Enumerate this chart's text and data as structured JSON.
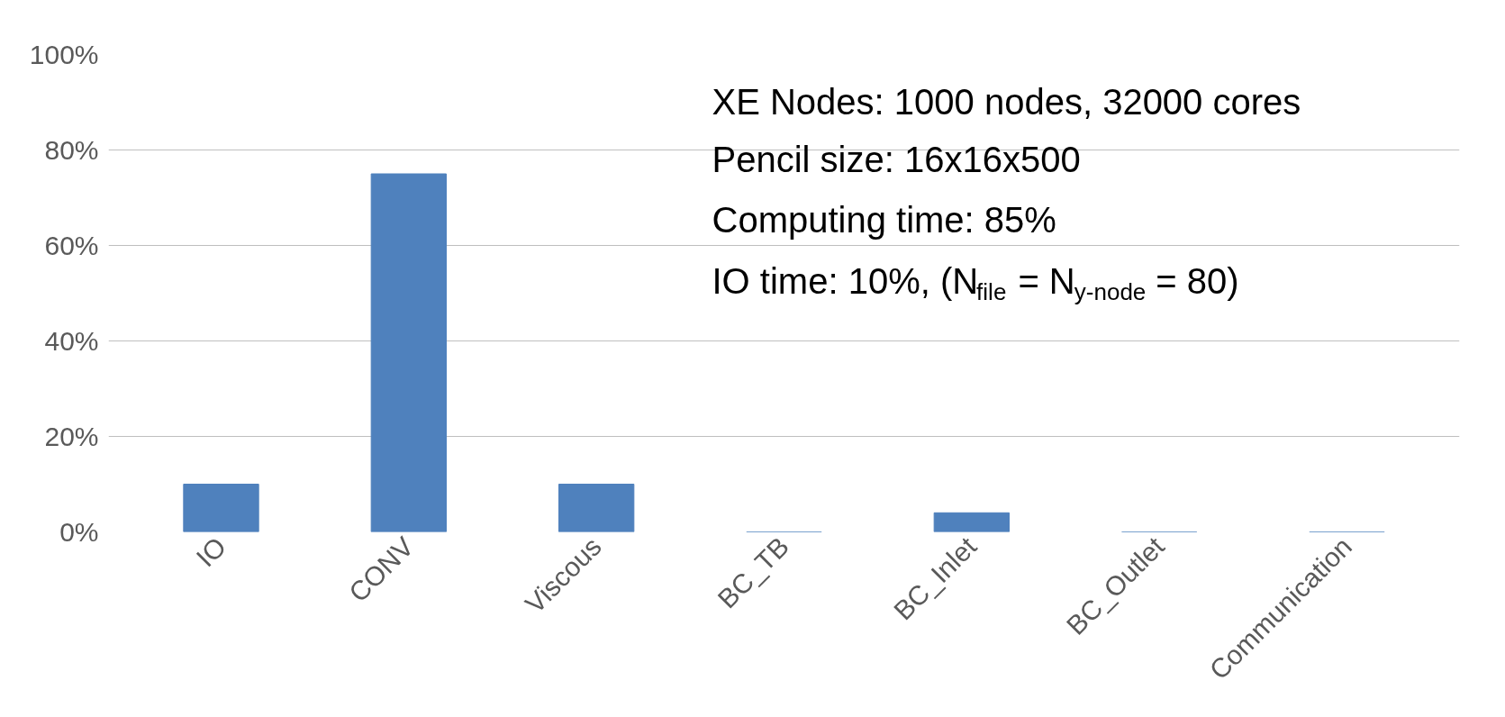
{
  "chart_data": {
    "type": "bar",
    "categories": [
      "IO",
      "CONV",
      "Viscous",
      "BC_TB",
      "BC_Inlet",
      "BC_Outlet",
      "Communication"
    ],
    "values": [
      10,
      75,
      10,
      0,
      4,
      0,
      0
    ],
    "color": "#4f81bd",
    "ylim": [
      0,
      100
    ],
    "yticks": [
      {
        "value": 0,
        "label": "0%"
      },
      {
        "value": 20,
        "label": "20%"
      },
      {
        "value": 40,
        "label": "40%"
      },
      {
        "value": 60,
        "label": "60%"
      },
      {
        "value": 80,
        "label": "80%"
      },
      {
        "value": 100,
        "label": "100%"
      }
    ],
    "grid": "y",
    "annotations": [
      "XE Nodes: 1000 nodes, 32000 cores",
      "Pencil size: 16x16x500",
      "Computing time: 85%",
      "IO time: 10%, (N$_{file}$ = N$_{y-node}$ = 80)"
    ]
  }
}
